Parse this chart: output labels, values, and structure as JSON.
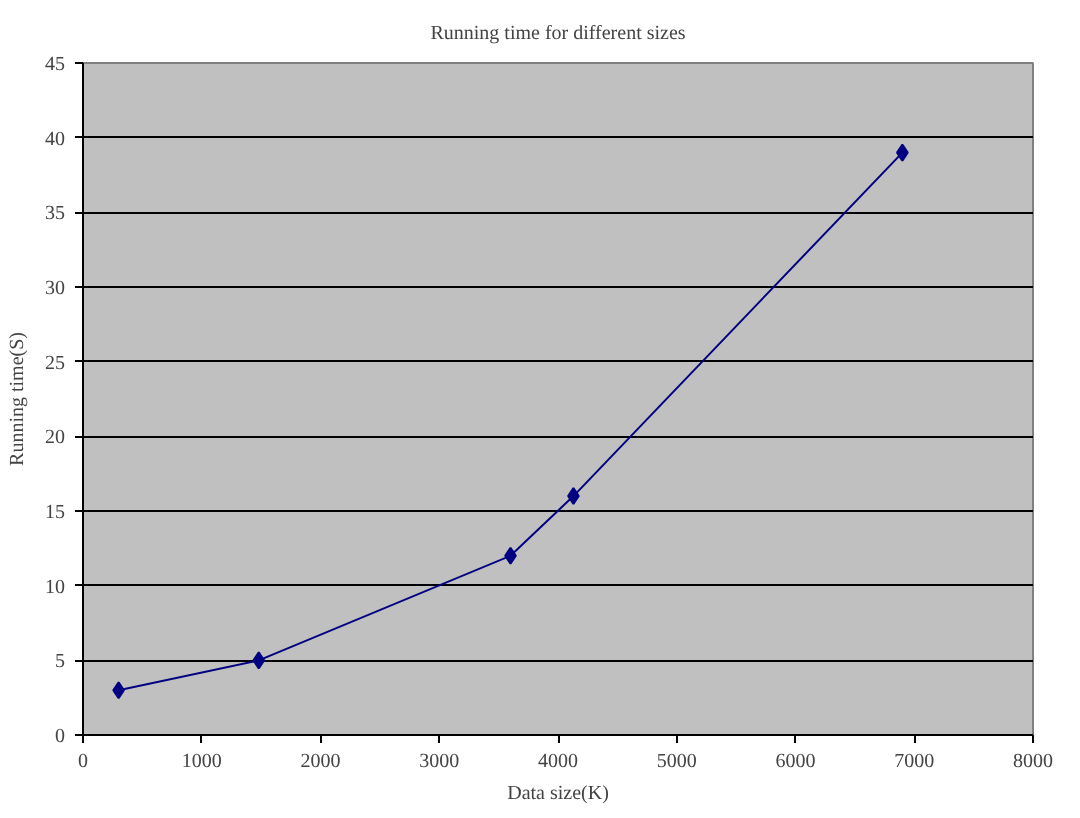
{
  "chart_data": {
    "type": "line",
    "title": "Running time for different sizes",
    "xlabel": "Data size(K)",
    "ylabel": "Running time(S)",
    "x": [
      300,
      1480,
      3600,
      4130,
      6900
    ],
    "series": [
      {
        "color": "#000080",
        "values": [
          3,
          5,
          12,
          16,
          39
        ]
      }
    ],
    "xlim": [
      0,
      8000
    ],
    "xticks": [
      0,
      1000,
      2000,
      3000,
      4000,
      5000,
      6000,
      7000,
      8000
    ],
    "ylim": [
      0,
      45
    ],
    "yticks": [
      0,
      5,
      10,
      15,
      20,
      25,
      30,
      35,
      40,
      45
    ],
    "grid": "y",
    "marker": "diamond",
    "line_style": "solid"
  }
}
